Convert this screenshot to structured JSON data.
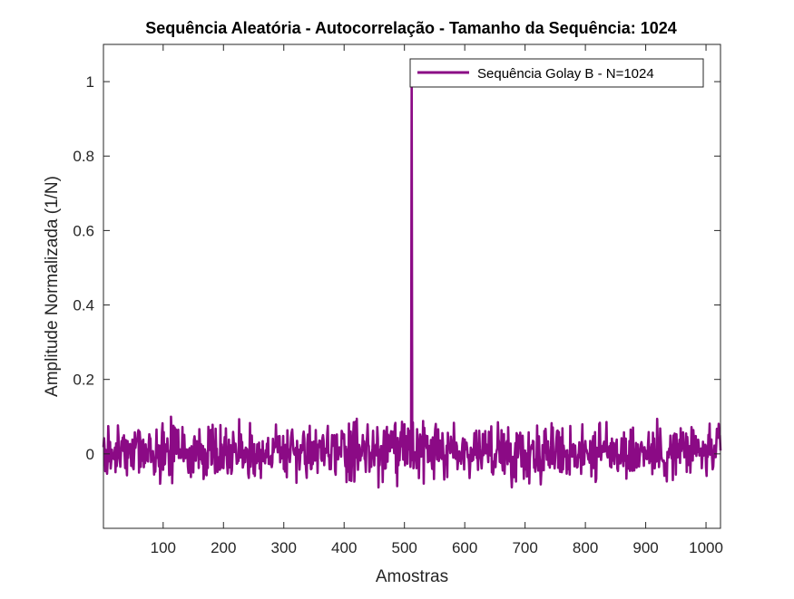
{
  "colors": {
    "series": "#8B0A85",
    "axes": "#262626",
    "background": "#ffffff"
  },
  "chart_data": {
    "type": "line",
    "title": "Sequência Aleatória - Autocorrelação - Tamanho da Sequência: 1024",
    "xlabel": "Amostras",
    "ylabel": "Amplitude Normalizada (1/N)",
    "xlim": [
      1,
      1024
    ],
    "ylim": [
      -0.2,
      1.1
    ],
    "xticks": [
      100,
      200,
      300,
      400,
      500,
      600,
      700,
      800,
      900,
      1000
    ],
    "xtick_labels": [
      "100",
      "200",
      "300",
      "400",
      "500",
      "600",
      "700",
      "800",
      "900",
      "1000"
    ],
    "yticks": [
      0,
      0.2,
      0.4,
      0.6,
      0.8,
      1
    ],
    "ytick_labels": [
      "0",
      "0.2",
      "0.4",
      "0.6",
      "0.8",
      "1"
    ],
    "grid": false,
    "legend_position": "top-right",
    "series": [
      {
        "name": "Sequência Golay B - N=1024",
        "description": "Autocorrelation: peak of 1 at sample 512, sidelobes fluctuating roughly between -0.09 and 0.10",
        "peak": {
          "x": 512,
          "y": 1
        },
        "sidelobe_range": [
          -0.09,
          0.1
        ]
      }
    ]
  }
}
